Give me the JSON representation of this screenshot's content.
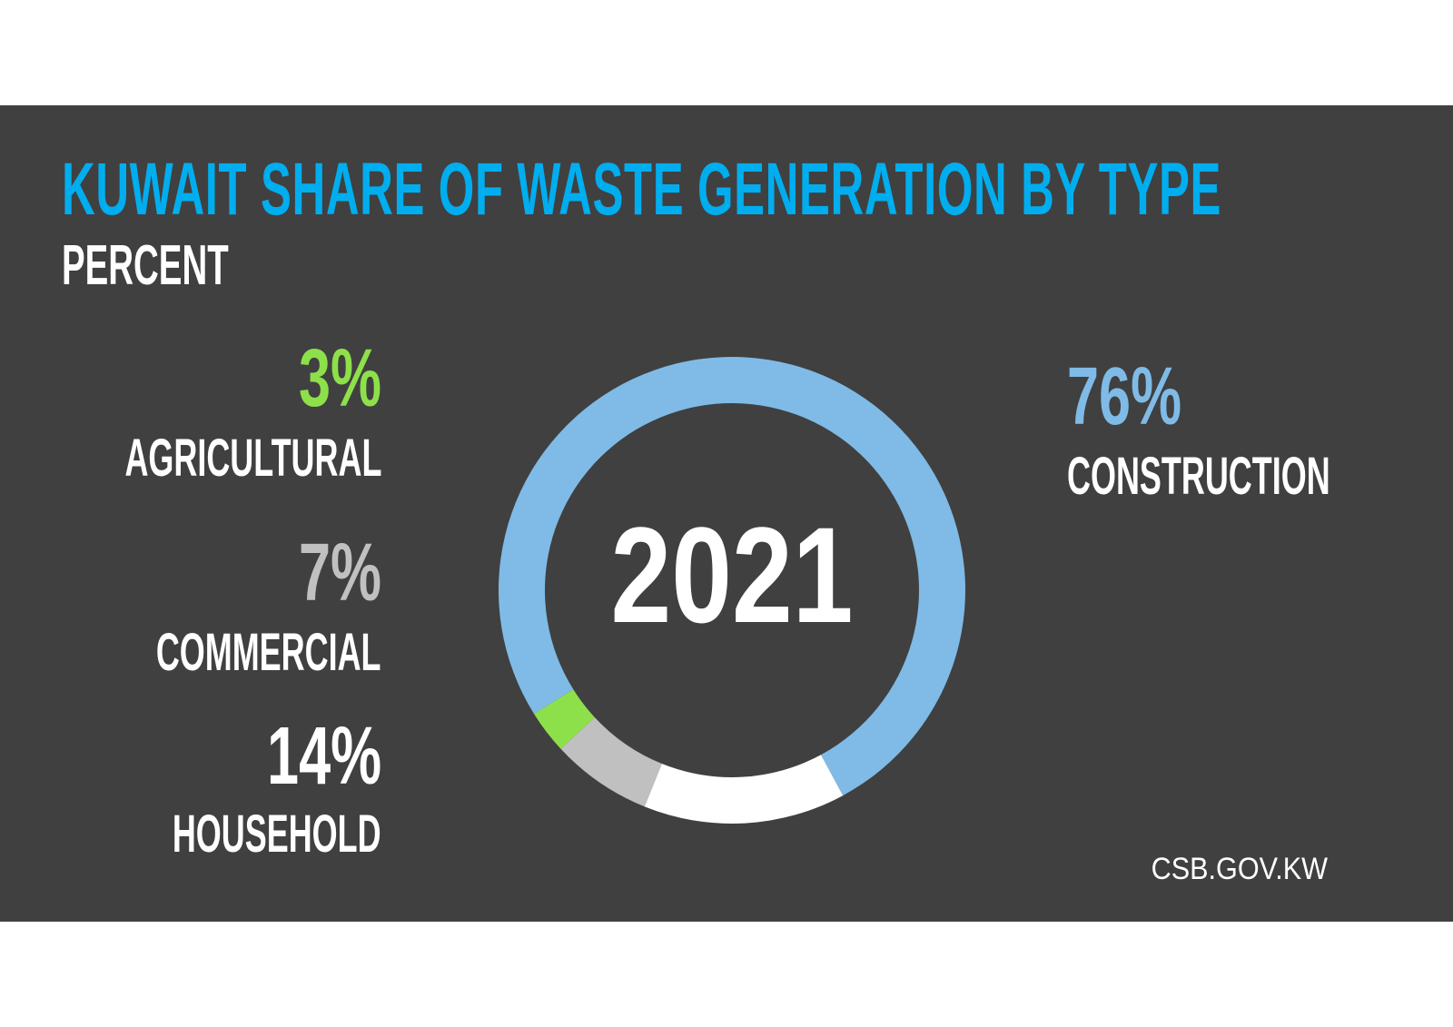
{
  "chart_data": {
    "type": "pie",
    "title": "KUWAIT SHARE OF WASTE GENERATION BY TYPE",
    "subtitle": "PERCENT",
    "center_label": "2021",
    "source": "CSB.GOV.KW",
    "slices": [
      {
        "label": "CONSTRUCTION",
        "value": 76,
        "value_label": "76%",
        "color": "#7fbbe6"
      },
      {
        "label": "HOUSEHOLD",
        "value": 14,
        "value_label": "14%",
        "color": "#ffffff"
      },
      {
        "label": "COMMERCIAL",
        "value": 7,
        "value_label": "7%",
        "color": "#c0c0c0"
      },
      {
        "label": "AGRICULTURAL",
        "value": 3,
        "value_label": "3%",
        "color": "#8ee04a"
      }
    ]
  },
  "colors": {
    "background": "#404040",
    "title": "#00aeef",
    "agricultural_text": "#8ee04a",
    "commercial_text": "#c0c0c0",
    "household_text": "#ffffff",
    "construction_text": "#7fbbe6"
  }
}
